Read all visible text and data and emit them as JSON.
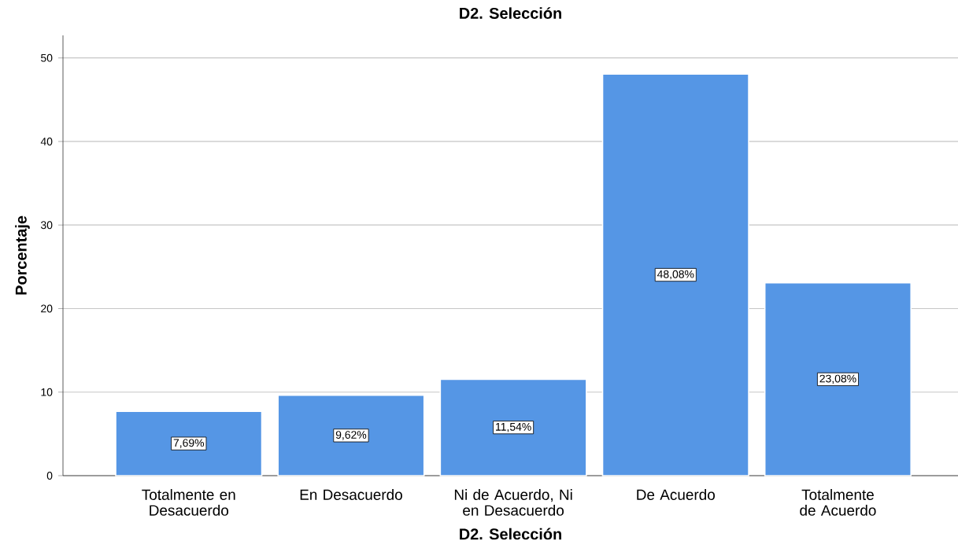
{
  "chart_data": {
    "type": "bar",
    "title": "D2. Selección",
    "xlabel": "D2. Selección",
    "ylabel": "Porcentaje",
    "categories": [
      "Totalmente en Desacuerdo",
      "En Desacuerdo",
      "Ni de Acuerdo, Ni en Desacuerdo",
      "De Acuerdo",
      "Totalmente de Acuerdo"
    ],
    "values": [
      7.69,
      9.62,
      11.54,
      48.08,
      23.08
    ],
    "value_labels": [
      "7,69%",
      "9,62%",
      "11,54%",
      "48,08%",
      "23,08%"
    ],
    "color": "#5596e5",
    "ylim": [
      0,
      52.7
    ],
    "yticks": [
      0,
      10,
      20,
      30,
      40,
      50
    ],
    "grid": "y"
  }
}
